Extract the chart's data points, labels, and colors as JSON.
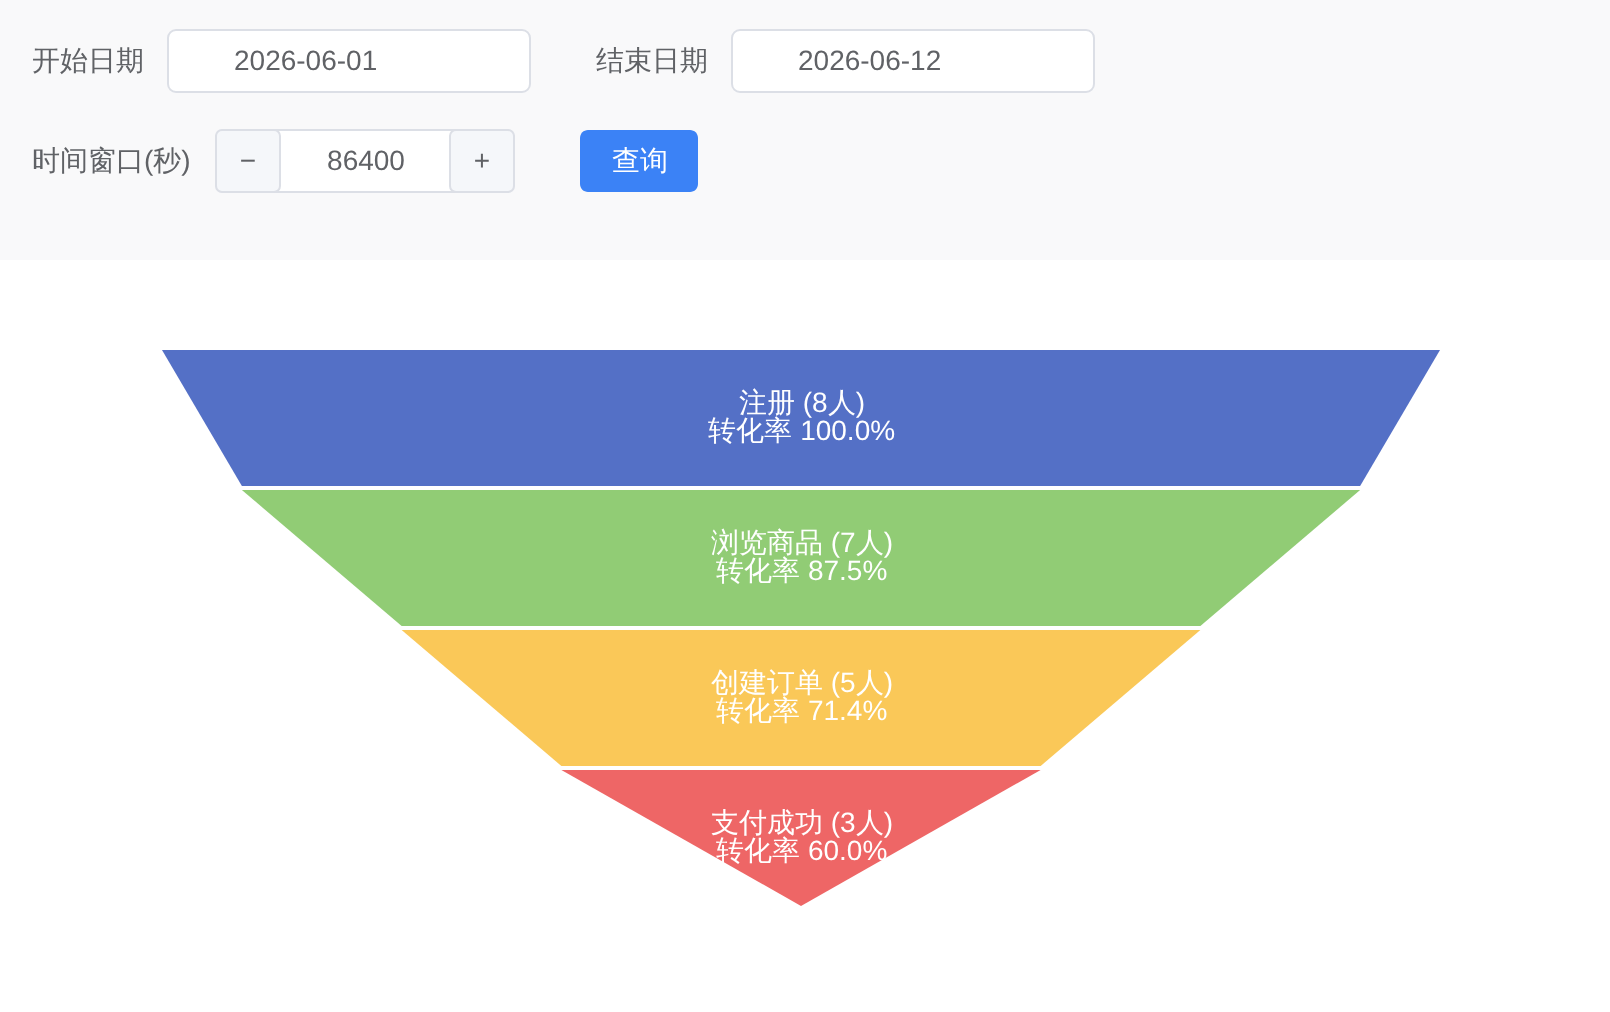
{
  "chart_data": [
    {
      "type": "other",
      "annotations": [
        "开始日期",
        "2026-06-01",
        "结束日期",
        "2026-06-12",
        "时间窗口(秒)",
        "−",
        "86400",
        "+",
        "查询"
      ]
    },
    {
      "type": "other",
      "categories": [
        "注册",
        "浏览商品",
        "创建订单",
        "支付成功"
      ],
      "values": [
        8,
        7,
        5,
        3
      ],
      "value_labels": [
        "(8人)",
        "(7人)",
        "(5人)",
        "(3人)"
      ],
      "colors": [
        "#5470c6",
        "#91cc75",
        "#fac858",
        "#ee6666"
      ],
      "annotations": [
        "转化率 100.0%",
        "转化率 87.5%",
        "转化率 71.4%",
        "转化率 60.0%"
      ]
    }
  ]
}
